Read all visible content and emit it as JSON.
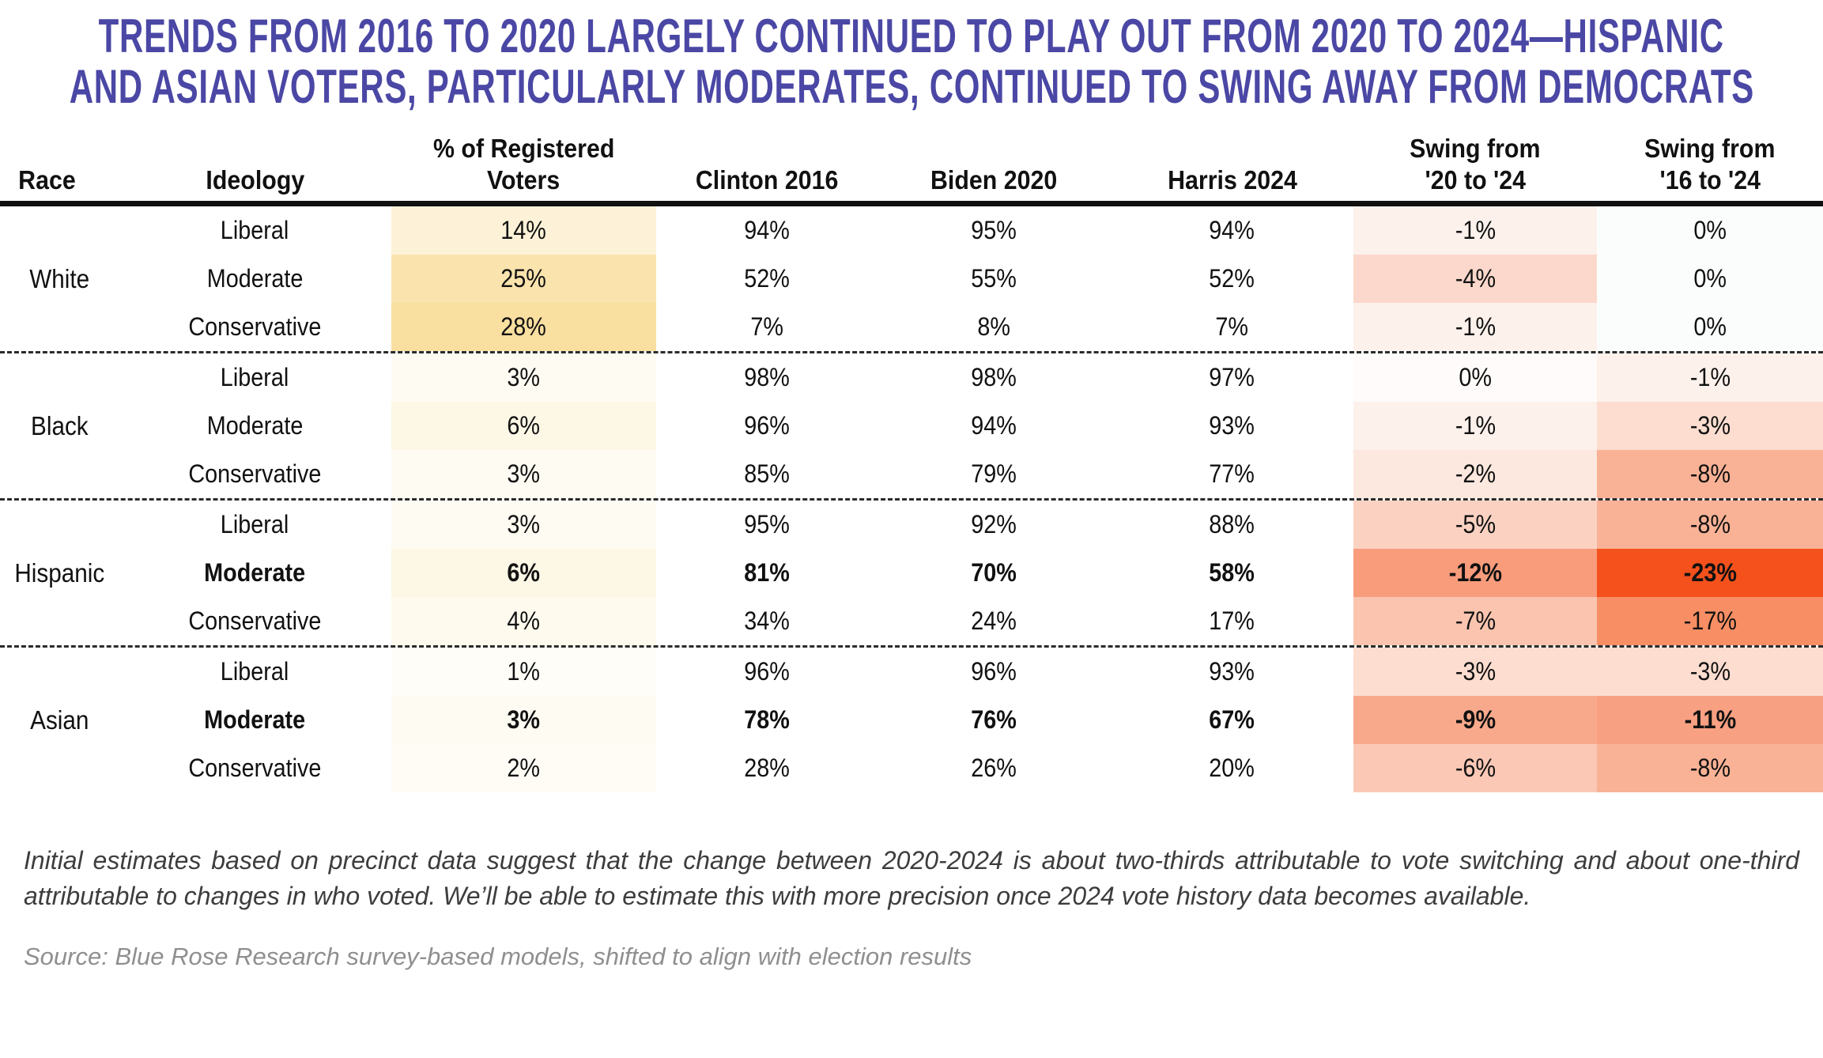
{
  "title": {
    "line1": "TRENDS FROM 2016 TO 2020 LARGELY CONTINUED TO PLAY OUT FROM 2020 TO 2024—HISPANIC",
    "line2": "AND ASIAN VOTERS, PARTICULARLY MODERATES, CONTINUED TO SWING AWAY FROM DEMOCRATS",
    "color": "#4b47a5"
  },
  "table": {
    "headers": {
      "race": "Race",
      "ideology": "Ideology",
      "registered_line1": "% of Registered",
      "registered_line2": "Voters",
      "clinton": "Clinton 2016",
      "biden": "Biden 2020",
      "harris": "Harris 2024",
      "swing20_line1": "Swing from",
      "swing20_line2": "'20 to '24",
      "swing16_line1": "Swing from",
      "swing16_line2": "'16 to '24"
    }
  },
  "chart_data": {
    "type": "table",
    "title": "TRENDS FROM 2016 TO 2020 LARGELY CONTINUED TO PLAY OUT FROM 2020 TO 2024—HISPANIC AND ASIAN VOTERS, PARTICULARLY MODERATES, CONTINUED TO SWING AWAY FROM DEMOCRATS",
    "columns": [
      "Race",
      "Ideology",
      "% of Registered Voters",
      "Clinton 2016",
      "Biden 2020",
      "Harris 2024",
      "Swing from '20 to '24",
      "Swing from '16 to '24"
    ],
    "heat_colors": {
      "registered_max": "#f9dfa0",
      "swing_max": "#f4511d"
    },
    "groups": [
      {
        "race": "White",
        "rows": [
          {
            "ideology": "Liberal",
            "registered": "14%",
            "clinton": "94%",
            "biden": "95%",
            "harris": "94%",
            "swing20": "-1%",
            "swing16": "0%",
            "emphasized": false,
            "registered_bg": "#fdf2d7",
            "swing20_bg": "#fdf1ec",
            "swing16_bg": "#fbfdfc"
          },
          {
            "ideology": "Moderate",
            "registered": "25%",
            "clinton": "52%",
            "biden": "55%",
            "harris": "52%",
            "swing20": "-4%",
            "swing16": "0%",
            "emphasized": false,
            "registered_bg": "#fae3ad",
            "swing20_bg": "#fbd8cb",
            "swing16_bg": "#fbfdfc"
          },
          {
            "ideology": "Conservative",
            "registered": "28%",
            "clinton": "7%",
            "biden": "8%",
            "harris": "7%",
            "swing20": "-1%",
            "swing16": "0%",
            "emphasized": false,
            "registered_bg": "#f9dfa0",
            "swing20_bg": "#fdf1ec",
            "swing16_bg": "#fbfdfc"
          }
        ]
      },
      {
        "race": "Black",
        "rows": [
          {
            "ideology": "Liberal",
            "registered": "3%",
            "clinton": "98%",
            "biden": "98%",
            "harris": "97%",
            "swing20": "0%",
            "swing16": "-1%",
            "emphasized": false,
            "registered_bg": "#fefbf2",
            "swing20_bg": "#fefbfa",
            "swing16_bg": "#fdf1ec"
          },
          {
            "ideology": "Moderate",
            "registered": "6%",
            "clinton": "96%",
            "biden": "94%",
            "harris": "93%",
            "swing20": "-1%",
            "swing16": "-3%",
            "emphasized": false,
            "registered_bg": "#fdf7e6",
            "swing20_bg": "#fdf1ec",
            "swing16_bg": "#fcddd0"
          },
          {
            "ideology": "Conservative",
            "registered": "3%",
            "clinton": "85%",
            "biden": "79%",
            "harris": "77%",
            "swing20": "-2%",
            "swing16": "-8%",
            "emphasized": false,
            "registered_bg": "#fefbf2",
            "swing20_bg": "#fce8de",
            "swing16_bg": "#f9b295"
          }
        ]
      },
      {
        "race": "Hispanic",
        "rows": [
          {
            "ideology": "Liberal",
            "registered": "3%",
            "clinton": "95%",
            "biden": "92%",
            "harris": "88%",
            "swing20": "-5%",
            "swing16": "-8%",
            "emphasized": false,
            "registered_bg": "#fefbf2",
            "swing20_bg": "#fbd2c2",
            "swing16_bg": "#f9b295"
          },
          {
            "ideology": "Moderate",
            "registered": "6%",
            "clinton": "81%",
            "biden": "70%",
            "harris": "58%",
            "swing20": "-12%",
            "swing16": "-23%",
            "emphasized": true,
            "registered_bg": "#fdf7e6",
            "swing20_bg": "#f89c7c",
            "swing16_bg": "#f4511d"
          },
          {
            "ideology": "Conservative",
            "registered": "4%",
            "clinton": "34%",
            "biden": "24%",
            "harris": "17%",
            "swing20": "-7%",
            "swing16": "-17%",
            "emphasized": false,
            "registered_bg": "#fefaee",
            "swing20_bg": "#fac4af",
            "swing16_bg": "#f78e64"
          }
        ]
      },
      {
        "race": "Asian",
        "rows": [
          {
            "ideology": "Liberal",
            "registered": "1%",
            "clinton": "96%",
            "biden": "96%",
            "harris": "93%",
            "swing20": "-3%",
            "swing16": "-3%",
            "emphasized": false,
            "registered_bg": "#fffdf8",
            "swing20_bg": "#fcddd0",
            "swing16_bg": "#fcddd0"
          },
          {
            "ideology": "Moderate",
            "registered": "3%",
            "clinton": "78%",
            "biden": "76%",
            "harris": "67%",
            "swing20": "-9%",
            "swing16": "-11%",
            "emphasized": true,
            "registered_bg": "#fefbf2",
            "swing20_bg": "#f8a98c",
            "swing16_bg": "#f7a082"
          },
          {
            "ideology": "Conservative",
            "registered": "2%",
            "clinton": "28%",
            "biden": "26%",
            "harris": "20%",
            "swing20": "-6%",
            "swing16": "-8%",
            "emphasized": false,
            "registered_bg": "#fefcf5",
            "swing20_bg": "#fac8b5",
            "swing16_bg": "#f9b295"
          }
        ]
      }
    ]
  },
  "footnote": "Initial estimates based on precinct data suggest that the change between 2020-2024 is about two-thirds attributable to vote switching and about one-third attributable to changes in who voted. We’ll be able to estimate this with more precision once 2024 vote history data becomes available.",
  "source": "Source: Blue Rose Research survey-based models, shifted to align with election results"
}
